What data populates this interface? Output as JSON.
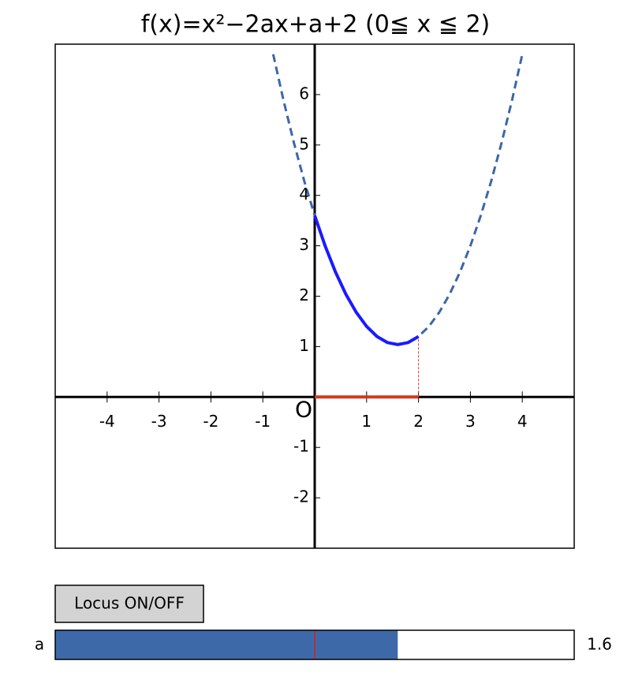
{
  "chart_data": {
    "type": "line",
    "title": "f(x)=x²−2ax+a+2 (0≦ x ≦ 2)",
    "origin_label": "O",
    "xlim": [
      -5,
      5
    ],
    "ylim": [
      -3,
      7
    ],
    "xticks": [
      -4,
      -3,
      -2,
      -1,
      1,
      2,
      3,
      4
    ],
    "yticks": [
      -2,
      -1,
      1,
      2,
      3,
      4,
      5,
      6
    ],
    "x": [
      -0.8,
      -0.6,
      -0.4,
      -0.2,
      0,
      0.2,
      0.4,
      0.6,
      0.8,
      1.0,
      1.2,
      1.4,
      1.6,
      1.8,
      2.0,
      2.2,
      2.4,
      2.6,
      2.8,
      3.0,
      3.2,
      3.4,
      3.6,
      3.8,
      4.0
    ],
    "series": [
      {
        "color": "#3c66a8",
        "dashed": true,
        "values": [
          6.8,
          5.88,
          5.04,
          4.28,
          3.6,
          3.0,
          2.48,
          2.04,
          1.68,
          1.4,
          1.2,
          1.08,
          1.04,
          1.08,
          1.2,
          1.4,
          1.68,
          2.04,
          2.48,
          3.0,
          3.6,
          4.28,
          5.04,
          5.88,
          6.8
        ]
      },
      {
        "color": "#1a1aff",
        "dashed": false,
        "values": [
          null,
          null,
          null,
          null,
          3.6,
          3.0,
          2.48,
          2.04,
          1.68,
          1.4,
          1.2,
          1.08,
          1.04,
          1.08,
          1.2,
          null,
          null,
          null,
          null,
          null,
          null,
          null,
          null,
          null,
          null
        ]
      }
    ],
    "domain": [
      0,
      2
    ],
    "domain_color": "#d6381c",
    "domain_end_value": 1.2
  },
  "widgets": {
    "button": {
      "label": "Locus ON/OFF"
    },
    "slider": {
      "label": "a",
      "min": -5,
      "max": 5,
      "value": 1.6,
      "init": 0,
      "color": "#3e69a9"
    }
  }
}
